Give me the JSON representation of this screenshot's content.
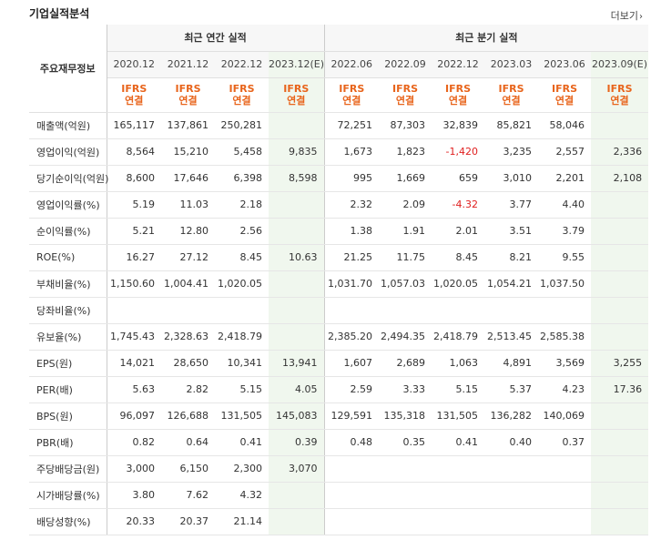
{
  "section": {
    "title": "기업실적분석",
    "more_label": "더보기"
  },
  "header": {
    "row_label": "주요재무정보",
    "annual_group": "최근 연간 실적",
    "quarter_group": "최근 분기 실적",
    "periods": [
      "2020.12",
      "2021.12",
      "2022.12",
      "2023.12(E)",
      "2022.06",
      "2022.09",
      "2022.12",
      "2023.03",
      "2023.06",
      "2023.09(E)"
    ],
    "accounting_top": "IFRS",
    "accounting_bottom": "연결"
  },
  "rows": [
    {
      "label": "매출액(억원)",
      "values": [
        "165,117",
        "137,861",
        "250,281",
        "",
        "72,251",
        "87,303",
        "32,839",
        "85,821",
        "58,046",
        ""
      ]
    },
    {
      "label": "영업이익(억원)",
      "values": [
        "8,564",
        "15,210",
        "5,458",
        "9,835",
        "1,673",
        "1,823",
        "-1,420",
        "3,235",
        "2,557",
        "2,336"
      ]
    },
    {
      "label": "당기순이익(억원)",
      "values": [
        "8,600",
        "17,646",
        "6,398",
        "8,598",
        "995",
        "1,669",
        "659",
        "3,010",
        "2,201",
        "2,108"
      ]
    },
    {
      "label": "영업이익률(%)",
      "values": [
        "5.19",
        "11.03",
        "2.18",
        "",
        "2.32",
        "2.09",
        "-4.32",
        "3.77",
        "4.40",
        ""
      ]
    },
    {
      "label": "순이익률(%)",
      "values": [
        "5.21",
        "12.80",
        "2.56",
        "",
        "1.38",
        "1.91",
        "2.01",
        "3.51",
        "3.79",
        ""
      ]
    },
    {
      "label": "ROE(%)",
      "values": [
        "16.27",
        "27.12",
        "8.45",
        "10.63",
        "21.25",
        "11.75",
        "8.45",
        "8.21",
        "9.55",
        ""
      ]
    },
    {
      "label": "부채비율(%)",
      "values": [
        "1,150.60",
        "1,004.41",
        "1,020.05",
        "",
        "1,031.70",
        "1,057.03",
        "1,020.05",
        "1,054.21",
        "1,037.50",
        ""
      ]
    },
    {
      "label": "당좌비율(%)",
      "values": [
        "",
        "",
        "",
        "",
        "",
        "",
        "",
        "",
        "",
        ""
      ]
    },
    {
      "label": "유보율(%)",
      "values": [
        "1,745.43",
        "2,328.63",
        "2,418.79",
        "",
        "2,385.20",
        "2,494.35",
        "2,418.79",
        "2,513.45",
        "2,585.38",
        ""
      ]
    },
    {
      "label": "EPS(원)",
      "values": [
        "14,021",
        "28,650",
        "10,341",
        "13,941",
        "1,607",
        "2,689",
        "1,063",
        "4,891",
        "3,569",
        "3,255"
      ]
    },
    {
      "label": "PER(배)",
      "values": [
        "5.63",
        "2.82",
        "5.15",
        "4.05",
        "2.59",
        "3.33",
        "5.15",
        "5.37",
        "4.23",
        "17.36"
      ]
    },
    {
      "label": "BPS(원)",
      "values": [
        "96,097",
        "126,688",
        "131,505",
        "145,083",
        "129,591",
        "135,318",
        "131,505",
        "136,282",
        "140,069",
        ""
      ]
    },
    {
      "label": "PBR(배)",
      "values": [
        "0.82",
        "0.64",
        "0.41",
        "0.39",
        "0.48",
        "0.35",
        "0.41",
        "0.40",
        "0.37",
        ""
      ]
    },
    {
      "label": "주당배당금(원)",
      "values": [
        "3,000",
        "6,150",
        "2,300",
        "3,070",
        "",
        "",
        "",
        "",
        "",
        ""
      ]
    },
    {
      "label": "시가배당률(%)",
      "values": [
        "3.80",
        "7.62",
        "4.32",
        "",
        "",
        "",
        "",
        "",
        "",
        ""
      ]
    },
    {
      "label": "배당성향(%)",
      "values": [
        "20.33",
        "20.37",
        "21.14",
        "",
        "",
        "",
        "",
        "",
        "",
        ""
      ]
    }
  ],
  "colors": {
    "accent": "#e8641b",
    "negative": "#e02020",
    "estimate_bg": "#f0f7ee",
    "header_bg": "#f7f7f7"
  }
}
